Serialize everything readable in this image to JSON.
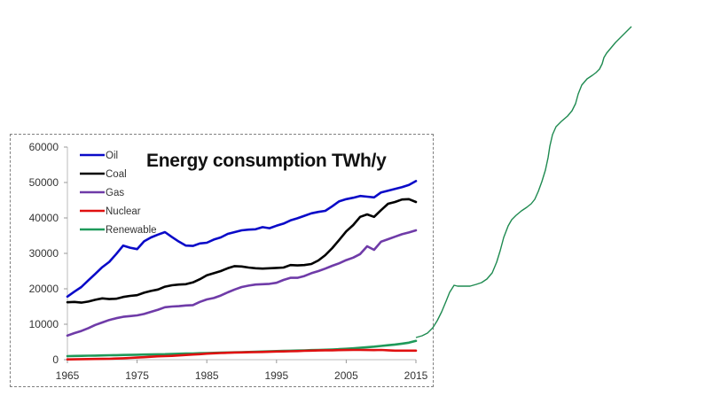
{
  "chart_data": {
    "type": "line",
    "title": "Energy consumption TWh/y",
    "xlabel": "",
    "ylabel": "",
    "xlim": [
      1965,
      2015
    ],
    "ylim": [
      0,
      60000
    ],
    "x_ticks": [
      "1965",
      "1975",
      "1985",
      "1995",
      "2005",
      "2015"
    ],
    "y_ticks": [
      "0",
      "10000",
      "20000",
      "30000",
      "40000",
      "50000",
      "60000"
    ],
    "grid": false,
    "legend_position": "top-left",
    "x": [
      1965,
      1966,
      1967,
      1968,
      1969,
      1970,
      1971,
      1972,
      1973,
      1974,
      1975,
      1976,
      1977,
      1978,
      1979,
      1980,
      1981,
      1982,
      1983,
      1984,
      1985,
      1986,
      1987,
      1988,
      1989,
      1990,
      1991,
      1992,
      1993,
      1994,
      1995,
      1996,
      1997,
      1998,
      1999,
      2000,
      2001,
      2002,
      2003,
      2004,
      2005,
      2006,
      2007,
      2008,
      2009,
      2010,
      2011,
      2012,
      2013,
      2014,
      2015
    ],
    "series": [
      {
        "name": "Oil",
        "color": "#0a0ac8",
        "values": [
          17800,
          19200,
          20500,
          22400,
          24200,
          26100,
          27600,
          29800,
          32200,
          31600,
          31200,
          33400,
          34500,
          35300,
          36000,
          34600,
          33300,
          32200,
          32100,
          32800,
          33000,
          33900,
          34500,
          35500,
          36000,
          36500,
          36700,
          36800,
          37400,
          37100,
          37800,
          38400,
          39300,
          39900,
          40600,
          41300,
          41700,
          42000,
          43300,
          44700,
          45300,
          45700,
          46200,
          46000,
          45800,
          47200,
          47700,
          48200,
          48700,
          49300,
          50400
        ]
      },
      {
        "name": "Coal",
        "color": "#000000",
        "values": [
          16200,
          16300,
          16100,
          16400,
          16900,
          17300,
          17100,
          17200,
          17700,
          18000,
          18200,
          18900,
          19400,
          19800,
          20600,
          21000,
          21200,
          21300,
          21800,
          22700,
          23800,
          24400,
          25000,
          25800,
          26400,
          26300,
          26000,
          25800,
          25700,
          25800,
          25900,
          26000,
          26700,
          26600,
          26700,
          27000,
          28000,
          29500,
          31500,
          33800,
          36200,
          38000,
          40300,
          41000,
          40300,
          42200,
          44000,
          44500,
          45200,
          45300,
          44500
        ]
      },
      {
        "name": "Gas",
        "color": "#6f3ba8",
        "values": [
          6800,
          7500,
          8100,
          8900,
          9800,
          10500,
          11200,
          11700,
          12100,
          12300,
          12500,
          12900,
          13500,
          14100,
          14800,
          15000,
          15100,
          15300,
          15400,
          16300,
          17000,
          17400,
          18100,
          19000,
          19800,
          20500,
          20900,
          21200,
          21300,
          21400,
          21700,
          22500,
          23100,
          23100,
          23600,
          24400,
          25000,
          25700,
          26500,
          27200,
          28100,
          28800,
          29800,
          32000,
          31000,
          33300,
          34000,
          34700,
          35400,
          35900,
          36500
        ]
      },
      {
        "name": "Nuclear",
        "color": "#e01010",
        "values": [
          80,
          110,
          140,
          180,
          200,
          220,
          260,
          320,
          400,
          500,
          600,
          700,
          820,
          950,
          1000,
          1080,
          1200,
          1320,
          1450,
          1560,
          1700,
          1790,
          1880,
          1960,
          2020,
          2040,
          2090,
          2130,
          2180,
          2230,
          2290,
          2330,
          2380,
          2430,
          2500,
          2560,
          2600,
          2640,
          2660,
          2700,
          2720,
          2760,
          2740,
          2720,
          2700,
          2740,
          2640,
          2560,
          2560,
          2540,
          2540
        ]
      },
      {
        "name": "Renewable",
        "color": "#1e9a5a",
        "values": [
          1000,
          1050,
          1080,
          1120,
          1160,
          1200,
          1240,
          1280,
          1320,
          1360,
          1400,
          1440,
          1480,
          1520,
          1560,
          1620,
          1680,
          1720,
          1760,
          1820,
          1880,
          1930,
          1970,
          2020,
          2070,
          2120,
          2180,
          2240,
          2300,
          2350,
          2420,
          2470,
          2520,
          2580,
          2630,
          2700,
          2740,
          2800,
          2880,
          2980,
          3080,
          3200,
          3350,
          3520,
          3680,
          3880,
          4080,
          4280,
          4520,
          4800,
          5300
        ]
      }
    ],
    "annotation_extension": {
      "description": "Hand-drawn green continuation of the Renewable curve beyond 2015, rising off the top-right of the image",
      "color": "#1e8a50"
    }
  }
}
